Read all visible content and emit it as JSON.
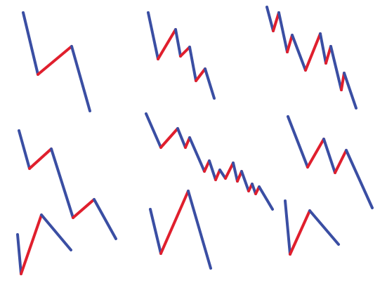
{
  "colors": {
    "background": "#ffffff",
    "down_stroke": "#3a4ea3",
    "up_stroke": "#e01f2d"
  }
}
